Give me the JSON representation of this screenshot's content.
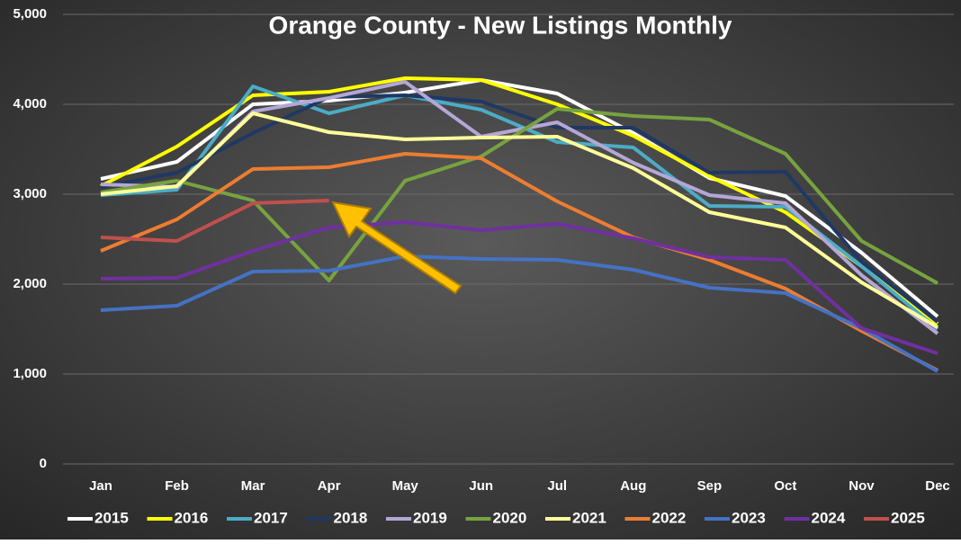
{
  "chart_data": {
    "type": "line",
    "title": "Orange County - New Listings Monthly",
    "categories": [
      "Jan",
      "Feb",
      "Mar",
      "Apr",
      "May",
      "Jun",
      "Jul",
      "Aug",
      "Sep",
      "Oct",
      "Nov",
      "Dec"
    ],
    "ylim": [
      0,
      5000
    ],
    "yticks": [
      0,
      {
        "value": 1000,
        "label": "1,000"
      },
      {
        "value": 2000,
        "label": "2,000"
      },
      {
        "value": 3000,
        "label": "3,000"
      },
      {
        "value": 4000,
        "label": "4,000"
      },
      {
        "value": 5000,
        "label": "5,000"
      }
    ],
    "grid": true,
    "legend": "bottom",
    "series": [
      {
        "name": "2015",
        "color": "#ffffff",
        "values": [
          3170,
          3360,
          4000,
          4040,
          4130,
          4270,
          4120,
          3680,
          3180,
          2980,
          2350,
          1640
        ]
      },
      {
        "name": "2016",
        "color": "#ffff00",
        "values": [
          3090,
          3530,
          4100,
          4140,
          4290,
          4270,
          4000,
          3650,
          3200,
          2800,
          2200,
          1560
        ]
      },
      {
        "name": "2017",
        "color": "#4bacc6",
        "values": [
          2990,
          3050,
          4200,
          3900,
          4100,
          3940,
          3580,
          3520,
          2870,
          2860,
          2200,
          1500
        ]
      },
      {
        "name": "2018",
        "color": "#1f3864",
        "values": [
          3080,
          3240,
          3680,
          4080,
          4100,
          4030,
          3740,
          3740,
          3240,
          3250,
          2250,
          1580
        ]
      },
      {
        "name": "2019",
        "color": "#b4a7d6",
        "values": [
          3110,
          3080,
          3920,
          4070,
          4250,
          3640,
          3800,
          3350,
          2990,
          2900,
          2100,
          1450
        ]
      },
      {
        "name": "2020",
        "color": "#77a33f",
        "values": [
          3020,
          3150,
          2930,
          2040,
          3150,
          3420,
          3950,
          3870,
          3830,
          3450,
          2480,
          2010
        ]
      },
      {
        "name": "2021",
        "color": "#ffff99",
        "values": [
          3000,
          3090,
          3900,
          3690,
          3610,
          3630,
          3640,
          3290,
          2800,
          2630,
          2020,
          1520
        ]
      },
      {
        "name": "2022",
        "color": "#ed7d31",
        "values": [
          2370,
          2720,
          3280,
          3300,
          3450,
          3400,
          2920,
          2520,
          2270,
          1950,
          1480,
          1040
        ]
      },
      {
        "name": "2023",
        "color": "#4472c4",
        "values": [
          1710,
          1760,
          2140,
          2150,
          2310,
          2280,
          2270,
          2160,
          1960,
          1900,
          1510,
          1030
        ]
      },
      {
        "name": "2024",
        "color": "#7030a0",
        "values": [
          2060,
          2070,
          2370,
          2630,
          2690,
          2600,
          2670,
          2510,
          2300,
          2270,
          1510,
          1230
        ]
      },
      {
        "name": "2025",
        "color": "#c0504d",
        "values": [
          2520,
          2480,
          2900,
          2930,
          null,
          null,
          null,
          null,
          null,
          null,
          null,
          null
        ]
      }
    ]
  }
}
